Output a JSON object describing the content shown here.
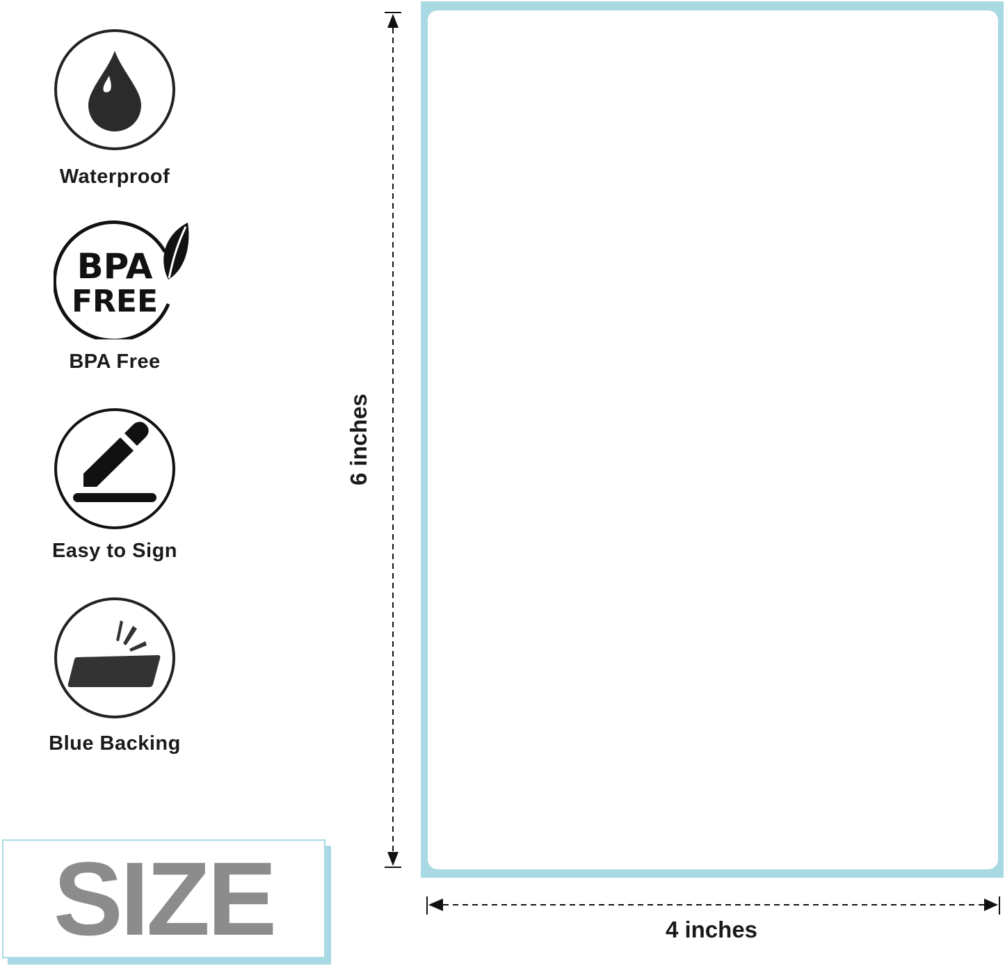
{
  "features": [
    {
      "icon": "water-drop-icon",
      "label": "Waterproof"
    },
    {
      "icon": "bpa-free-leaf-icon",
      "label": "BPA Free",
      "icon_text": [
        "BPA",
        "FREE"
      ]
    },
    {
      "icon": "pencil-sign-icon",
      "label": "Easy to Sign"
    },
    {
      "icon": "peeling-label-icon",
      "label": "Blue Backing"
    }
  ],
  "size_banner": "SIZE",
  "dimensions": {
    "height": "6 inches",
    "width": "4 inches"
  },
  "colors": {
    "backing": "#a9d9e3",
    "icon": "#1a1a1a",
    "size_text": "#8c8c8c"
  }
}
